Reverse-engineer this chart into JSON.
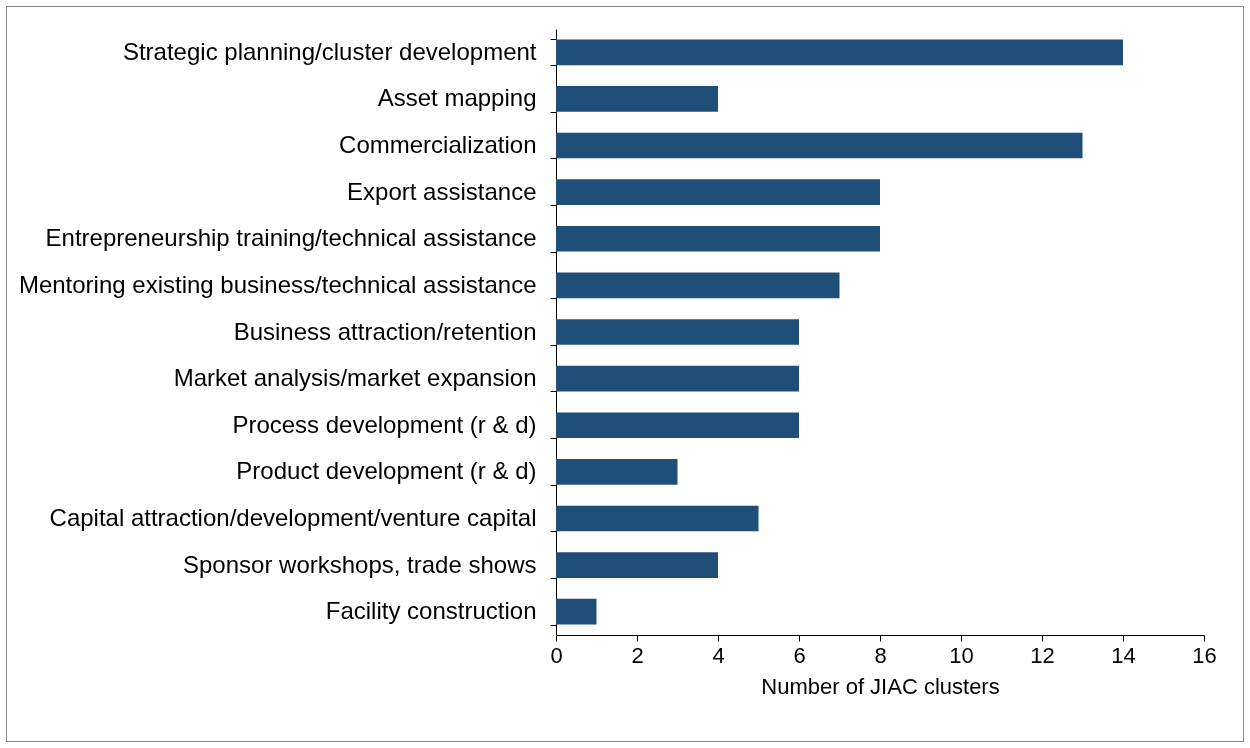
{
  "chart_data": {
    "type": "bar",
    "orientation": "horizontal",
    "xlabel": "Number of JIAC clusters",
    "categories": [
      "Strategic planning/cluster development",
      "Asset mapping",
      "Commercialization",
      "Export assistance",
      "Entrepreneurship training/technical assistance",
      "Mentoring existing business/technical assistance",
      "Business attraction/retention",
      "Market analysis/market expansion",
      "Process development (r & d)",
      "Product development (r & d)",
      "Capital attraction/development/venture capital",
      "Sponsor workshops, trade shows",
      "Facility construction"
    ],
    "values": [
      14,
      4,
      13,
      8,
      8,
      7,
      6,
      6,
      6,
      3,
      5,
      4,
      1
    ],
    "color": "#1f4e79",
    "xlim": [
      0,
      16
    ],
    "xticks": [
      0,
      2,
      4,
      6,
      8,
      10,
      12,
      14,
      16
    ],
    "grid": false
  }
}
